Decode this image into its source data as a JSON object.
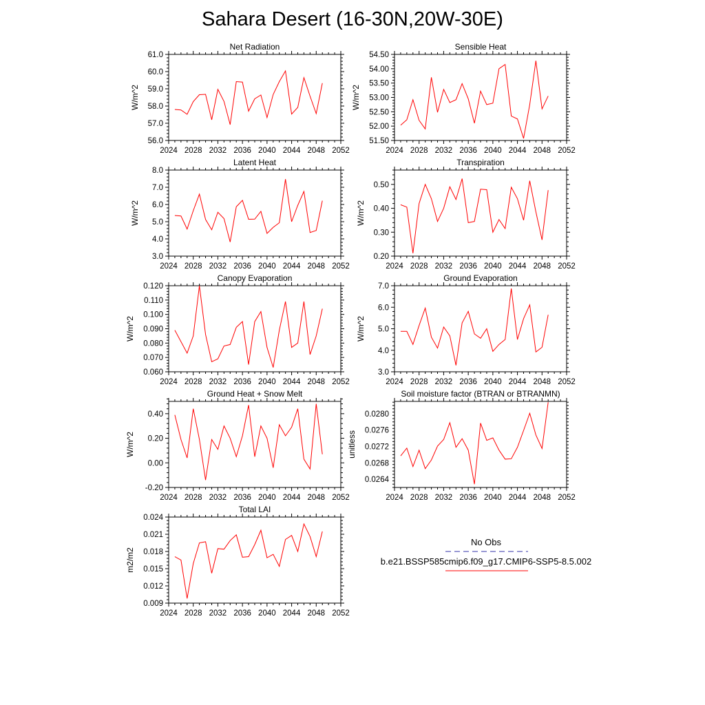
{
  "page": {
    "title": "Sahara Desert (16-30N,20W-30E)"
  },
  "legend": {
    "obs_label": "No Obs",
    "obs_color": "#3333aa",
    "case_label": "b.e21.BSSP585cmip6.f09_g17.CMIP6-SSP5-8.5.002",
    "case_color": "#ff0000"
  },
  "chart_data": [
    {
      "type": "line",
      "title": "Net Radiation",
      "ylabel": "W/m^2",
      "xlim": [
        2024,
        2052
      ],
      "xticks": [
        2024,
        2028,
        2032,
        2036,
        2040,
        2044,
        2048,
        2052
      ],
      "xtick_labels": [
        "2024",
        "2028",
        "2032",
        "2036",
        "2040",
        "2044",
        "2048",
        "2052"
      ],
      "ylim": [
        56.0,
        61.0
      ],
      "yticks": [
        56.0,
        57.0,
        58.0,
        59.0,
        60.0,
        61.0
      ],
      "ytick_labels": [
        "56.0",
        "57.0",
        "58.0",
        "59.0",
        "60.0",
        "61.0"
      ],
      "yminor_step": 0.2,
      "color": "#ff0000",
      "x": [
        2025,
        2026,
        2027,
        2028,
        2029,
        2030,
        2031,
        2032,
        2033,
        2034,
        2035,
        2036,
        2037,
        2038,
        2039,
        2040,
        2041,
        2042,
        2043,
        2044,
        2045,
        2046,
        2047,
        2048,
        2049
      ],
      "y": [
        57.8,
        57.77,
        57.52,
        58.26,
        58.66,
        58.68,
        57.2,
        58.97,
        58.27,
        56.92,
        59.42,
        59.39,
        57.7,
        58.42,
        58.64,
        57.33,
        58.67,
        59.42,
        60.04,
        57.53,
        57.92,
        59.65,
        58.57,
        57.56,
        59.33
      ]
    },
    {
      "type": "line",
      "title": "Sensible Heat",
      "ylabel": "W/m^2",
      "xlim": [
        2024,
        2052
      ],
      "xticks": [
        2024,
        2028,
        2032,
        2036,
        2040,
        2044,
        2048,
        2052
      ],
      "xtick_labels": [
        "2024",
        "2028",
        "2032",
        "2036",
        "2040",
        "2044",
        "2048",
        "2052"
      ],
      "ylim": [
        51.5,
        54.5
      ],
      "yticks": [
        51.5,
        52.0,
        52.5,
        53.0,
        53.5,
        54.0,
        54.5
      ],
      "ytick_labels": [
        "51.50",
        "52.00",
        "52.50",
        "53.00",
        "53.50",
        "54.00",
        "54.50"
      ],
      "yminor_step": 0.1,
      "color": "#ff0000",
      "x": [
        2025,
        2026,
        2027,
        2028,
        2029,
        2030,
        2031,
        2032,
        2033,
        2034,
        2035,
        2036,
        2037,
        2038,
        2039,
        2040,
        2041,
        2042,
        2043,
        2044,
        2045,
        2046,
        2047,
        2048,
        2049
      ],
      "y": [
        52.03,
        52.22,
        52.92,
        52.2,
        51.9,
        53.7,
        52.48,
        53.28,
        52.82,
        52.92,
        53.48,
        52.95,
        52.1,
        53.22,
        52.75,
        52.8,
        54.0,
        54.15,
        52.35,
        52.25,
        51.57,
        52.75,
        54.28,
        52.6,
        53.05
      ]
    },
    {
      "type": "line",
      "title": "Latent Heat",
      "ylabel": "W/m^2",
      "xlim": [
        2024,
        2052
      ],
      "xticks": [
        2024,
        2028,
        2032,
        2036,
        2040,
        2044,
        2048,
        2052
      ],
      "xtick_labels": [
        "2024",
        "2028",
        "2032",
        "2036",
        "2040",
        "2044",
        "2048",
        "2052"
      ],
      "ylim": [
        3.0,
        8.0
      ],
      "yticks": [
        3.0,
        4.0,
        5.0,
        6.0,
        7.0,
        8.0
      ],
      "ytick_labels": [
        "3.0",
        "4.0",
        "5.0",
        "6.0",
        "7.0",
        "8.0"
      ],
      "yminor_step": 0.2,
      "color": "#ff0000",
      "x": [
        2025,
        2026,
        2027,
        2028,
        2029,
        2030,
        2031,
        2032,
        2033,
        2034,
        2035,
        2036,
        2037,
        2038,
        2039,
        2040,
        2041,
        2042,
        2043,
        2044,
        2045,
        2046,
        2047,
        2048,
        2049
      ],
      "y": [
        5.36,
        5.33,
        4.57,
        5.64,
        6.6,
        5.13,
        4.53,
        5.55,
        5.18,
        3.82,
        5.87,
        6.24,
        5.14,
        5.15,
        5.6,
        4.32,
        4.67,
        4.94,
        7.47,
        5.0,
        5.95,
        6.76,
        4.37,
        4.49,
        6.22
      ]
    },
    {
      "type": "line",
      "title": "Transpiration",
      "ylabel": "W/m^2",
      "xlim": [
        2024,
        2052
      ],
      "xticks": [
        2024,
        2028,
        2032,
        2036,
        2040,
        2044,
        2048,
        2052
      ],
      "xtick_labels": [
        "2024",
        "2028",
        "2032",
        "2036",
        "2040",
        "2044",
        "2048",
        "2052"
      ],
      "ylim": [
        0.2,
        0.56
      ],
      "yticks": [
        0.2,
        0.3,
        0.4,
        0.5
      ],
      "ytick_labels": [
        "0.20",
        "0.30",
        "0.40",
        "0.50"
      ],
      "yminor_step": 0.02,
      "color": "#ff0000",
      "x": [
        2025,
        2026,
        2027,
        2028,
        2029,
        2030,
        2031,
        2032,
        2033,
        2034,
        2035,
        2036,
        2037,
        2038,
        2039,
        2040,
        2041,
        2042,
        2043,
        2044,
        2045,
        2046,
        2047,
        2048,
        2049
      ],
      "y": [
        0.415,
        0.405,
        0.212,
        0.42,
        0.5,
        0.44,
        0.345,
        0.4,
        0.49,
        0.437,
        0.524,
        0.34,
        0.345,
        0.48,
        0.478,
        0.3,
        0.353,
        0.315,
        0.488,
        0.44,
        0.35,
        0.515,
        0.385,
        0.268,
        0.476
      ]
    },
    {
      "type": "line",
      "title": "Canopy Evaporation",
      "ylabel": "W/m^2",
      "xlim": [
        2024,
        2052
      ],
      "xticks": [
        2024,
        2028,
        2032,
        2036,
        2040,
        2044,
        2048,
        2052
      ],
      "xtick_labels": [
        "2024",
        "2028",
        "2032",
        "2036",
        "2040",
        "2044",
        "2048",
        "2052"
      ],
      "ylim": [
        0.06,
        0.12
      ],
      "yticks": [
        0.06,
        0.07,
        0.08,
        0.09,
        0.1,
        0.11,
        0.12
      ],
      "ytick_labels": [
        "0.060",
        "0.070",
        "0.080",
        "0.090",
        "0.100",
        "0.110",
        "0.120"
      ],
      "yminor_step": 0.002,
      "color": "#ff0000",
      "x": [
        2025,
        2026,
        2027,
        2028,
        2029,
        2030,
        2031,
        2032,
        2033,
        2034,
        2035,
        2036,
        2037,
        2038,
        2039,
        2040,
        2041,
        2042,
        2043,
        2044,
        2045,
        2046,
        2047,
        2048,
        2049
      ],
      "y": [
        0.089,
        0.081,
        0.073,
        0.085,
        0.12,
        0.086,
        0.067,
        0.069,
        0.078,
        0.079,
        0.091,
        0.095,
        0.065,
        0.095,
        0.102,
        0.077,
        0.063,
        0.089,
        0.109,
        0.077,
        0.08,
        0.109,
        0.072,
        0.085,
        0.104
      ]
    },
    {
      "type": "line",
      "title": "Ground Evaporation",
      "ylabel": "W/m^2",
      "xlim": [
        2024,
        2052
      ],
      "xticks": [
        2024,
        2028,
        2032,
        2036,
        2040,
        2044,
        2048,
        2052
      ],
      "xtick_labels": [
        "2024",
        "2028",
        "2032",
        "2036",
        "2040",
        "2044",
        "2048",
        "2052"
      ],
      "ylim": [
        3.0,
        7.0
      ],
      "yticks": [
        3.0,
        4.0,
        5.0,
        6.0,
        7.0
      ],
      "ytick_labels": [
        "3.0",
        "4.0",
        "5.0",
        "6.0",
        "7.0"
      ],
      "yminor_step": 0.2,
      "color": "#ff0000",
      "x": [
        2025,
        2026,
        2027,
        2028,
        2029,
        2030,
        2031,
        2032,
        2033,
        2034,
        2035,
        2036,
        2037,
        2038,
        2039,
        2040,
        2041,
        2042,
        2043,
        2044,
        2045,
        2046,
        2047,
        2048,
        2049
      ],
      "y": [
        4.88,
        4.88,
        4.27,
        5.15,
        5.96,
        4.61,
        4.1,
        5.08,
        4.67,
        3.3,
        5.27,
        5.81,
        4.76,
        4.56,
        5.0,
        3.95,
        4.27,
        4.5,
        6.87,
        4.5,
        5.47,
        6.11,
        3.92,
        4.14,
        5.65
      ]
    },
    {
      "type": "line",
      "title": "Ground Heat + Snow Melt",
      "ylabel": "W/m^2",
      "xlim": [
        2024,
        2052
      ],
      "xticks": [
        2024,
        2028,
        2032,
        2036,
        2040,
        2044,
        2048,
        2052
      ],
      "xtick_labels": [
        "2024",
        "2028",
        "2032",
        "2036",
        "2040",
        "2044",
        "2048",
        "2052"
      ],
      "ylim": [
        -0.2,
        0.5
      ],
      "yticks": [
        -0.2,
        0.0,
        0.2,
        0.4
      ],
      "ytick_labels": [
        "-0.20",
        "0.00",
        "0.20",
        "0.40"
      ],
      "yminor_step": 0.04,
      "color": "#ff0000",
      "x": [
        2025,
        2026,
        2027,
        2028,
        2029,
        2030,
        2031,
        2032,
        2033,
        2034,
        2035,
        2036,
        2037,
        2038,
        2039,
        2040,
        2041,
        2042,
        2043,
        2044,
        2045,
        2046,
        2047,
        2048,
        2049
      ],
      "y": [
        0.39,
        0.19,
        0.04,
        0.44,
        0.19,
        -0.14,
        0.19,
        0.11,
        0.3,
        0.2,
        0.05,
        0.22,
        0.47,
        0.05,
        0.3,
        0.2,
        -0.04,
        0.31,
        0.22,
        0.29,
        0.44,
        0.03,
        -0.05,
        0.48,
        0.07
      ]
    },
    {
      "type": "line",
      "title": "Soil moisture factor (BTRAN or BTRANMN)",
      "ylabel": "unitless",
      "xlim": [
        2024,
        2052
      ],
      "xticks": [
        2024,
        2028,
        2032,
        2036,
        2040,
        2044,
        2048,
        2052
      ],
      "xtick_labels": [
        "2024",
        "2028",
        "2032",
        "2036",
        "2040",
        "2044",
        "2048",
        "2052"
      ],
      "ylim": [
        0.0262,
        0.0283
      ],
      "yticks": [
        0.0264,
        0.0268,
        0.0272,
        0.0276,
        0.028
      ],
      "ytick_labels": [
        "0.0264",
        "0.0268",
        "0.0272",
        "0.0276",
        "0.0280"
      ],
      "yminor_step": 8e-05,
      "color": "#ff0000",
      "x": [
        2025,
        2026,
        2027,
        2028,
        2029,
        2030,
        2031,
        2032,
        2033,
        2034,
        2035,
        2036,
        2037,
        2038,
        2039,
        2040,
        2041,
        2042,
        2043,
        2044,
        2045,
        2046,
        2047,
        2048,
        2049
      ],
      "y": [
        0.02697,
        0.02716,
        0.02671,
        0.02711,
        0.02666,
        0.02687,
        0.02721,
        0.02737,
        0.02778,
        0.02718,
        0.02739,
        0.02711,
        0.02628,
        0.02777,
        0.02735,
        0.02741,
        0.02711,
        0.02689,
        0.0269,
        0.02718,
        0.02759,
        0.02801,
        0.02748,
        0.02715,
        0.02828
      ]
    },
    {
      "type": "line",
      "title": "Total LAI",
      "ylabel": "m2/m2",
      "xlim": [
        2024,
        2052
      ],
      "xticks": [
        2024,
        2028,
        2032,
        2036,
        2040,
        2044,
        2048,
        2052
      ],
      "xtick_labels": [
        "2024",
        "2028",
        "2032",
        "2036",
        "2040",
        "2044",
        "2048",
        "2052"
      ],
      "ylim": [
        0.009,
        0.024
      ],
      "yticks": [
        0.009,
        0.012,
        0.015,
        0.018,
        0.021,
        0.024
      ],
      "ytick_labels": [
        "0.009",
        "0.012",
        "0.015",
        "0.018",
        "0.021",
        "0.024"
      ],
      "yminor_step": 0.0006,
      "color": "#ff0000",
      "x": [
        2025,
        2026,
        2027,
        2028,
        2029,
        2030,
        2031,
        2032,
        2033,
        2034,
        2035,
        2036,
        2037,
        2038,
        2039,
        2040,
        2041,
        2042,
        2043,
        2044,
        2045,
        2046,
        2047,
        2048,
        2049
      ],
      "y": [
        0.0171,
        0.0165,
        0.0098,
        0.0159,
        0.0195,
        0.0197,
        0.0142,
        0.0185,
        0.0184,
        0.0199,
        0.0209,
        0.017,
        0.0171,
        0.0192,
        0.0217,
        0.0169,
        0.0175,
        0.0154,
        0.0201,
        0.0208,
        0.018,
        0.0228,
        0.0206,
        0.0171,
        0.0215
      ]
    }
  ]
}
